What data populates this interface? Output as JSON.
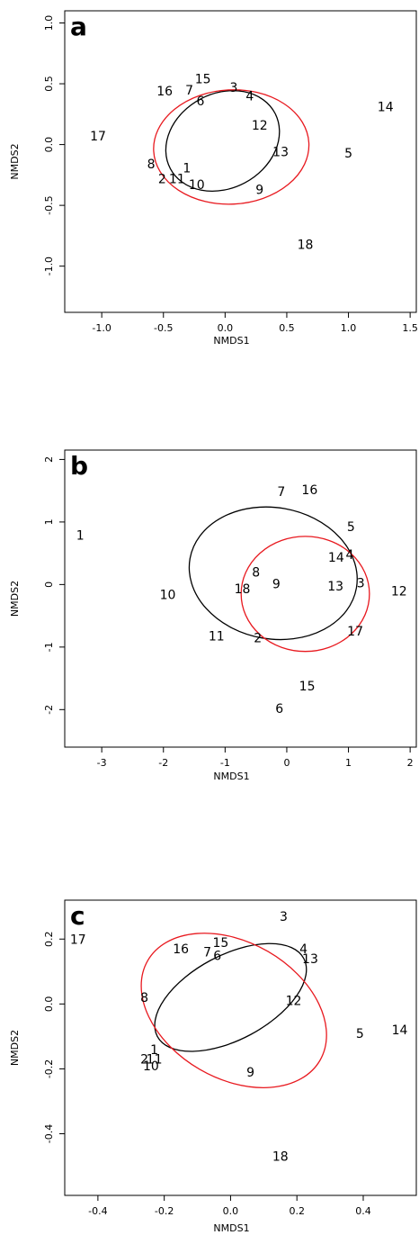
{
  "chart_data": [
    {
      "type": "scatter",
      "panel_label": "a",
      "xlabel": "NMDS1",
      "ylabel": "NMDS2",
      "xlim": [
        -1.3,
        1.55
      ],
      "ylim": [
        -1.38,
        1.1
      ],
      "xticks": [
        {
          "v": -1.0,
          "label": "-1.0"
        },
        {
          "v": -0.5,
          "label": "-0.5"
        },
        {
          "v": 0.0,
          "label": "0.0"
        },
        {
          "v": 0.5,
          "label": "0.5"
        },
        {
          "v": 1.0,
          "label": "1.0"
        },
        {
          "v": 1.5,
          "label": "1.5"
        }
      ],
      "yticks": [
        {
          "v": -1.0,
          "label": "-1.0"
        },
        {
          "v": -0.5,
          "label": "-0.5"
        },
        {
          "v": 0.0,
          "label": "0.0"
        },
        {
          "v": 0.5,
          "label": "0.5"
        },
        {
          "v": 1.0,
          "label": "1.0"
        }
      ],
      "points": [
        {
          "label": "1",
          "x": -0.31,
          "y": -0.19
        },
        {
          "label": "2",
          "x": -0.51,
          "y": -0.28
        },
        {
          "label": "3",
          "x": 0.07,
          "y": 0.47
        },
        {
          "label": "4",
          "x": 0.2,
          "y": 0.4
        },
        {
          "label": "5",
          "x": 1.0,
          "y": -0.07
        },
        {
          "label": "6",
          "x": -0.2,
          "y": 0.36
        },
        {
          "label": "7",
          "x": -0.29,
          "y": 0.45
        },
        {
          "label": "8",
          "x": -0.6,
          "y": -0.16
        },
        {
          "label": "9",
          "x": 0.28,
          "y": -0.37
        },
        {
          "label": "10",
          "x": -0.23,
          "y": -0.33
        },
        {
          "label": "11",
          "x": -0.39,
          "y": -0.28
        },
        {
          "label": "12",
          "x": 0.28,
          "y": 0.16
        },
        {
          "label": "13",
          "x": 0.45,
          "y": -0.06
        },
        {
          "label": "14",
          "x": 1.3,
          "y": 0.31
        },
        {
          "label": "15",
          "x": -0.18,
          "y": 0.54
        },
        {
          "label": "16",
          "x": -0.49,
          "y": 0.44
        },
        {
          "label": "17",
          "x": -1.03,
          "y": 0.07
        },
        {
          "label": "18",
          "x": 0.65,
          "y": -0.82
        }
      ],
      "ellipses": [
        {
          "color": "#000000",
          "cx": -0.02,
          "cy": 0.03,
          "rx": 0.48,
          "ry": 0.39,
          "rot": 28
        },
        {
          "color": "#e8191f",
          "cx": 0.05,
          "cy": -0.02,
          "rx": 0.63,
          "ry": 0.47,
          "rot": 3
        }
      ]
    },
    {
      "type": "scatter",
      "panel_label": "b",
      "xlabel": "NMDS1",
      "ylabel": "NMDS2",
      "xlim": [
        -3.6,
        2.1
      ],
      "ylim": [
        -2.6,
        2.15
      ],
      "xticks": [
        {
          "v": -3,
          "label": "-3"
        },
        {
          "v": -2,
          "label": "-2"
        },
        {
          "v": -1,
          "label": "-1"
        },
        {
          "v": 0,
          "label": "0"
        },
        {
          "v": 1,
          "label": "1"
        },
        {
          "v": 2,
          "label": "2"
        }
      ],
      "yticks": [
        {
          "v": -2,
          "label": "-2"
        },
        {
          "v": -1,
          "label": "-1"
        },
        {
          "v": 0,
          "label": "0"
        },
        {
          "v": 1,
          "label": "1"
        },
        {
          "v": 2,
          "label": "2"
        }
      ],
      "points": [
        {
          "label": "1",
          "x": -3.35,
          "y": 0.79
        },
        {
          "label": "2",
          "x": -0.47,
          "y": -0.85
        },
        {
          "label": "3",
          "x": 1.2,
          "y": 0.03
        },
        {
          "label": "4",
          "x": 1.02,
          "y": 0.48
        },
        {
          "label": "5",
          "x": 1.04,
          "y": 0.93
        },
        {
          "label": "6",
          "x": -0.12,
          "y": -1.98
        },
        {
          "label": "7",
          "x": -0.09,
          "y": 1.49
        },
        {
          "label": "8",
          "x": -0.5,
          "y": 0.2
        },
        {
          "label": "9",
          "x": -0.17,
          "y": 0.01
        },
        {
          "label": "10",
          "x": -1.93,
          "y": -0.16
        },
        {
          "label": "11",
          "x": -1.14,
          "y": -0.82
        },
        {
          "label": "12",
          "x": 1.82,
          "y": -0.1
        },
        {
          "label": "13",
          "x": 0.79,
          "y": -0.02
        },
        {
          "label": "14",
          "x": 0.8,
          "y": 0.44
        },
        {
          "label": "15",
          "x": 0.33,
          "y": -1.62
        },
        {
          "label": "16",
          "x": 0.37,
          "y": 1.52
        },
        {
          "label": "17",
          "x": 1.11,
          "y": -0.74
        },
        {
          "label": "18",
          "x": -0.72,
          "y": -0.07
        }
      ],
      "ellipses": [
        {
          "color": "#000000",
          "cx": -0.22,
          "cy": 0.18,
          "rx": 1.37,
          "ry": 1.05,
          "rot": -10
        },
        {
          "color": "#e8191f",
          "cx": 0.3,
          "cy": -0.15,
          "rx": 1.04,
          "ry": 0.92,
          "rot": 0
        }
      ]
    },
    {
      "type": "scatter",
      "panel_label": "c",
      "xlabel": "NMDS1",
      "ylabel": "NMDS2",
      "xlim": [
        -0.5,
        0.56
      ],
      "ylim": [
        -0.59,
        0.32
      ],
      "xticks": [
        {
          "v": -0.4,
          "label": "-0.4"
        },
        {
          "v": -0.2,
          "label": "-0.2"
        },
        {
          "v": 0.0,
          "label": "0.0"
        },
        {
          "v": 0.2,
          "label": "0.2"
        },
        {
          "v": 0.4,
          "label": "0.4"
        }
      ],
      "yticks": [
        {
          "v": -0.4,
          "label": "-0.4"
        },
        {
          "v": -0.2,
          "label": "-0.2"
        },
        {
          "v": 0.0,
          "label": "0.0"
        },
        {
          "v": 0.2,
          "label": "0.2"
        }
      ],
      "points": [
        {
          "label": "1",
          "x": -0.23,
          "y": -0.14
        },
        {
          "label": "2",
          "x": -0.26,
          "y": -0.17
        },
        {
          "label": "3",
          "x": 0.16,
          "y": 0.27
        },
        {
          "label": "4",
          "x": 0.22,
          "y": 0.17
        },
        {
          "label": "5",
          "x": 0.39,
          "y": -0.09
        },
        {
          "label": "6",
          "x": -0.04,
          "y": 0.15
        },
        {
          "label": "7",
          "x": -0.07,
          "y": 0.16
        },
        {
          "label": "8",
          "x": -0.26,
          "y": 0.02
        },
        {
          "label": "9",
          "x": 0.06,
          "y": -0.21
        },
        {
          "label": "10",
          "x": -0.24,
          "y": -0.19
        },
        {
          "label": "11",
          "x": -0.23,
          "y": -0.17
        },
        {
          "label": "12",
          "x": 0.19,
          "y": 0.01
        },
        {
          "label": "13",
          "x": 0.24,
          "y": 0.14
        },
        {
          "label": "14",
          "x": 0.51,
          "y": -0.08
        },
        {
          "label": "15",
          "x": -0.03,
          "y": 0.19
        },
        {
          "label": "16",
          "x": -0.15,
          "y": 0.17
        },
        {
          "label": "17",
          "x": -0.46,
          "y": 0.2
        },
        {
          "label": "18",
          "x": 0.15,
          "y": -0.47
        }
      ],
      "ellipses": [
        {
          "color": "#000000",
          "cx": 0.0,
          "cy": 0.02,
          "rx": 0.25,
          "ry": 0.13,
          "rot": 28
        },
        {
          "color": "#e8191f",
          "cx": 0.01,
          "cy": -0.02,
          "rx": 0.3,
          "ry": 0.21,
          "rot": -30
        }
      ]
    }
  ]
}
